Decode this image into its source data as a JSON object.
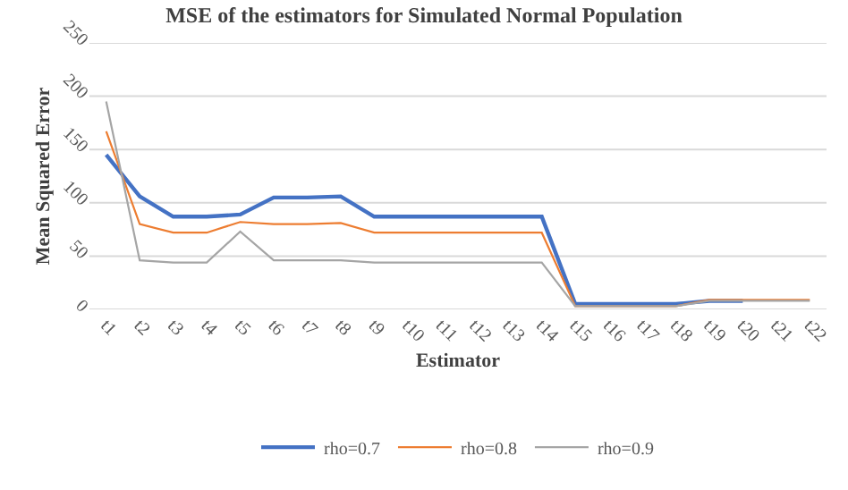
{
  "chart_data": {
    "type": "line",
    "title": "MSE of the estimators for Simulated Normal Population",
    "xlabel": "Estimator",
    "ylabel": "Mean Squared Error",
    "categories": [
      "t1",
      "t2",
      "t3",
      "t4",
      "t5",
      "t6",
      "t7",
      "t8",
      "t9",
      "t10",
      "t11",
      "t12",
      "t13",
      "t14",
      "t15",
      "t16",
      "t17",
      "t18",
      "t19",
      "t20",
      "t21",
      "t22"
    ],
    "series": [
      {
        "name": "rho=0.7",
        "color": "#4472c4",
        "values": [
          145,
          106,
          87,
          87,
          89,
          105,
          105,
          106,
          87,
          87,
          87,
          87,
          87,
          87,
          5,
          5,
          5,
          5,
          8,
          8,
          null,
          null
        ]
      },
      {
        "name": "rho=0.8",
        "color": "#ed7d31",
        "values": [
          167,
          80,
          72,
          72,
          82,
          80,
          80,
          81,
          72,
          72,
          72,
          72,
          72,
          72,
          3,
          3,
          3,
          3,
          9,
          9,
          9,
          9
        ]
      },
      {
        "name": "rho=0.9",
        "color": "#a5a5a5",
        "values": [
          195,
          46,
          44,
          44,
          73,
          46,
          46,
          46,
          44,
          44,
          44,
          44,
          44,
          44,
          3,
          3,
          3,
          3,
          8,
          8,
          8,
          8
        ]
      }
    ],
    "ylim": [
      0,
      250
    ],
    "yticks": [
      0,
      50,
      100,
      150,
      200,
      250
    ],
    "grid": "y",
    "legend": "bottom",
    "marker": "none",
    "line_style": "solid"
  }
}
